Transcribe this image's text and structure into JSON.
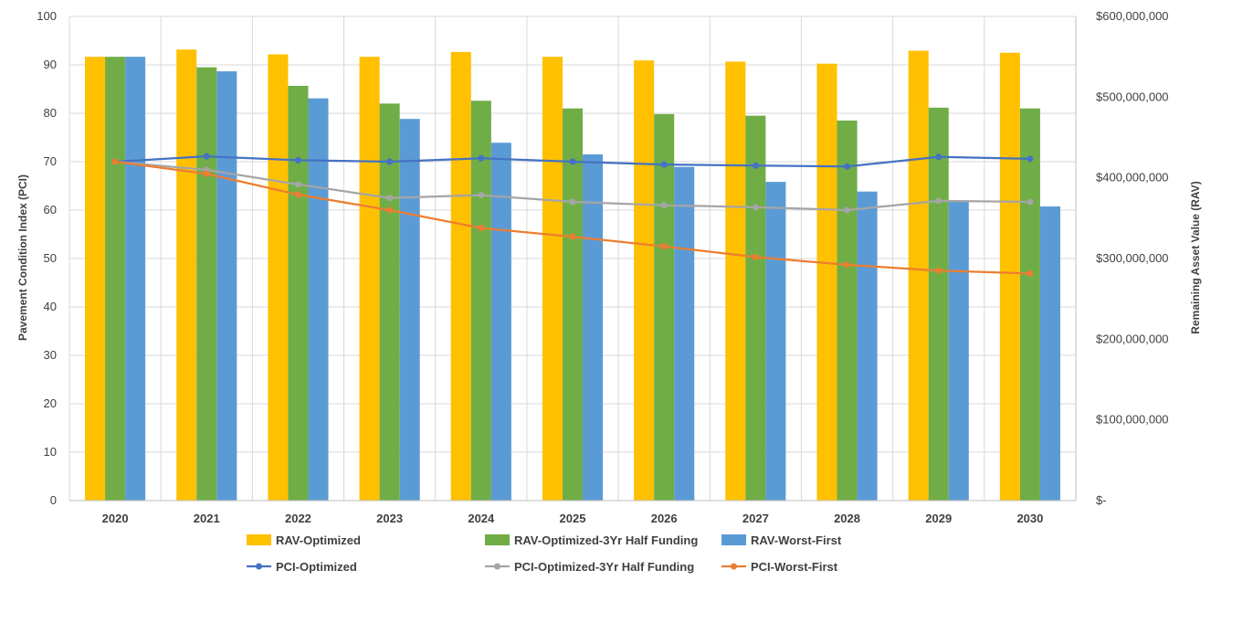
{
  "chart_data": {
    "type": "bar",
    "title": "",
    "xlabel": "",
    "ylabel": "Pavement Condition Index (PCI)",
    "y2label": "Remaining Asset Value (RAV)",
    "ylim": [
      0,
      100
    ],
    "y2lim": [
      0,
      600000000
    ],
    "yticks": [
      0,
      10,
      20,
      30,
      40,
      50,
      60,
      70,
      80,
      90,
      100
    ],
    "y2ticks": [
      "$-",
      "$100,000,000",
      "$200,000,000",
      "$300,000,000",
      "$400,000,000",
      "$500,000,000",
      "$600,000,000"
    ],
    "grid": true,
    "legend_position": "bottom",
    "categories": [
      "2020",
      "2021",
      "2022",
      "2023",
      "2024",
      "2025",
      "2026",
      "2027",
      "2028",
      "2029",
      "2030"
    ],
    "bar_series": [
      {
        "name": "RAV-Optimized",
        "color": "#FFC000",
        "values": [
          550000000,
          559000000,
          553000000,
          550000000,
          556000000,
          550000000,
          545500000,
          544000000,
          541500000,
          557500000,
          555000000
        ]
      },
      {
        "name": "RAV-Optimized-3Yr Half Funding",
        "color": "#70AD47",
        "values": [
          550000000,
          537000000,
          514000000,
          492000000,
          495500000,
          486000000,
          479000000,
          477000000,
          471000000,
          487000000,
          486000000
        ]
      },
      {
        "name": "RAV-Worst-First",
        "color": "#5B9BD5",
        "values": [
          550000000,
          532000000,
          498500000,
          473000000,
          443500000,
          429000000,
          413500000,
          395000000,
          383000000,
          371500000,
          364500000
        ]
      }
    ],
    "line_series": [
      {
        "name": "PCI-Optimized",
        "color": "#4472C4",
        "values": [
          70,
          71.1,
          70.3,
          70,
          70.7,
          70,
          69.4,
          69.2,
          69,
          71,
          70.6
        ]
      },
      {
        "name": "PCI-Optimized-3Yr Half Funding",
        "color": "#A5A5A5",
        "values": [
          70,
          68.3,
          65.3,
          62.5,
          63.1,
          61.7,
          61,
          60.6,
          60,
          61.9,
          61.7
        ]
      },
      {
        "name": "PCI-Worst-First",
        "color": "#ED7D31",
        "values": [
          70,
          67.5,
          63.2,
          60,
          56.3,
          54.5,
          52.5,
          50.3,
          48.7,
          47.5,
          46.9
        ]
      }
    ]
  }
}
